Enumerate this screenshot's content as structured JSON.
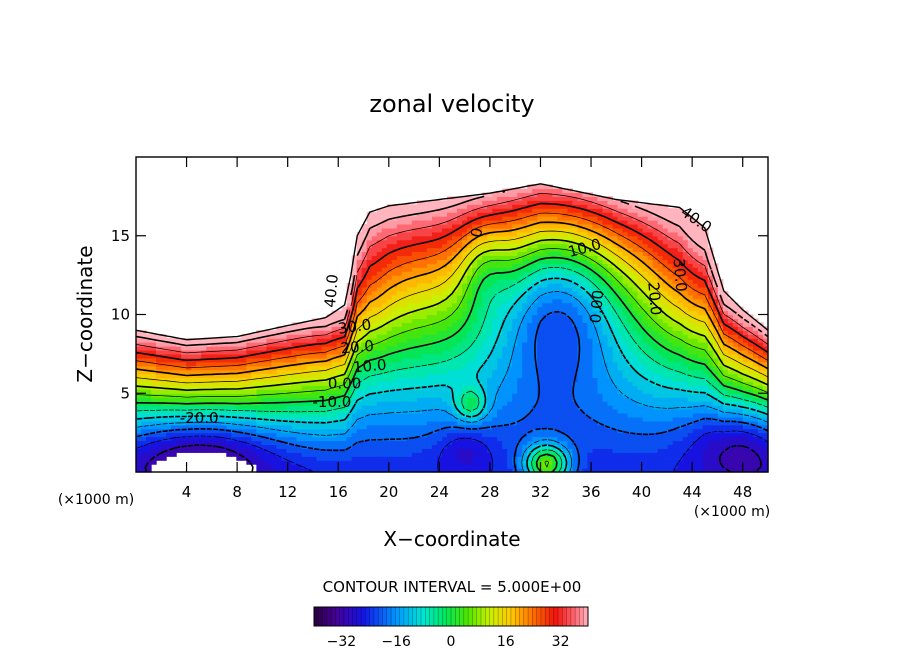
{
  "chart_data": {
    "type": "heatmap",
    "subtype": "filled-contour",
    "title": "zonal velocity",
    "xlabel": "X−coordinate",
    "ylabel": "Z−coordinate",
    "x_unit_left": "(×1000 m)",
    "x_unit_right": "(×1000 m)",
    "xlim": [
      0,
      50
    ],
    "ylim": [
      0,
      20
    ],
    "x_ticks": [
      4,
      8,
      12,
      16,
      20,
      24,
      28,
      32,
      36,
      40,
      44,
      48
    ],
    "y_ticks": [
      5,
      10,
      15
    ],
    "contour_interval_text": "CONTOUR INTERVAL = 5.000E+00",
    "contour_interval": 5.0,
    "colorbar": {
      "range": [
        -40,
        40
      ],
      "ticks": [
        -32,
        -16,
        0,
        16,
        32
      ]
    },
    "contour_labels": [
      {
        "text": "40.0",
        "x": 15.5,
        "y": 11.5,
        "rot": -85
      },
      {
        "text": "40.0",
        "x": 44.3,
        "y": 16.0,
        "rot": 35
      },
      {
        "text": "30.0",
        "x": 17.3,
        "y": 9.2,
        "rot": -8
      },
      {
        "text": "30.0",
        "x": 43.0,
        "y": 12.5,
        "rot": 85
      },
      {
        "text": "20.0",
        "x": 17.5,
        "y": 7.9,
        "rot": -5
      },
      {
        "text": "20.0",
        "x": 41.0,
        "y": 11.0,
        "rot": 85
      },
      {
        "text": "10.0",
        "x": 18.5,
        "y": 6.7,
        "rot": -5
      },
      {
        "text": "10.0",
        "x": 35.5,
        "y": 14.2,
        "rot": -15
      },
      {
        "text": "0.00",
        "x": 16.5,
        "y": 5.6,
        "rot": 0
      },
      {
        "text": "0.00",
        "x": 36.5,
        "y": 10.5,
        "rot": -85
      },
      {
        "text": "0",
        "x": 27.0,
        "y": 15.2,
        "rot": -80
      },
      {
        "text": "-10.0",
        "x": 15.5,
        "y": 4.4,
        "rot": 0
      },
      {
        "text": "-20.0",
        "x": 5.0,
        "y": 3.4,
        "rot": 0
      }
    ]
  }
}
